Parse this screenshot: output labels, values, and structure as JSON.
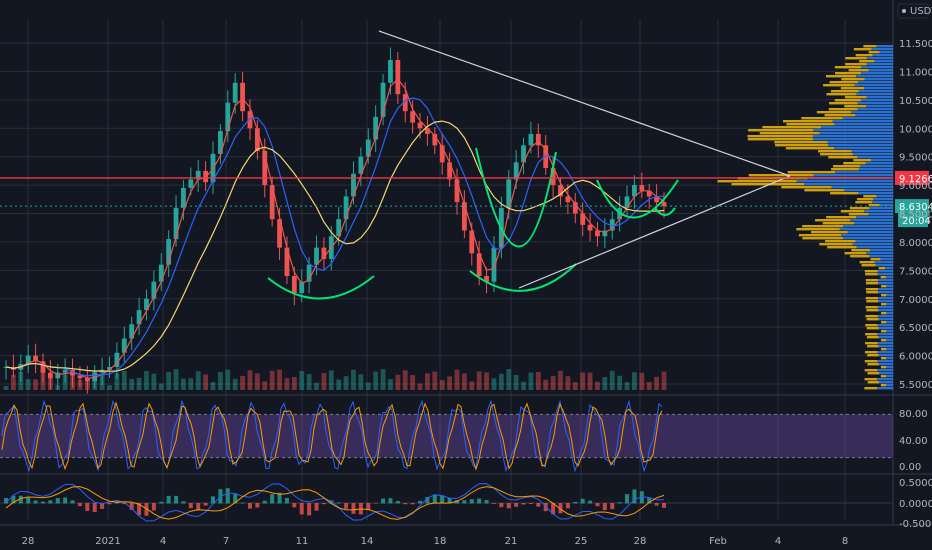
{
  "chart_data": {
    "type": "line",
    "currency_label": "USDT",
    "price_axis": {
      "ticks": [
        "11.5000",
        "11.0000",
        "10.5000",
        "10.0000",
        "9.5000",
        "9.0000",
        "8.5000",
        "8.0000",
        "7.5000",
        "7.0000",
        "6.5000",
        "6.0000",
        "5.5000"
      ],
      "ylim": [
        5.4,
        11.8
      ]
    },
    "time_axis": {
      "ticks": [
        "28",
        "2021",
        "4",
        "7",
        "11",
        "14",
        "18",
        "21",
        "25",
        "28",
        "Feb",
        "4",
        "8"
      ]
    },
    "price_series_close": [
      5.8,
      5.75,
      5.85,
      6.0,
      5.9,
      5.7,
      5.6,
      5.7,
      5.75,
      5.65,
      5.6,
      5.55,
      5.7,
      5.75,
      5.8,
      6.05,
      6.3,
      6.55,
      6.8,
      7.0,
      7.3,
      7.6,
      8.05,
      8.6,
      8.95,
      9.1,
      9.25,
      9.05,
      9.55,
      9.95,
      10.45,
      10.8,
      10.3,
      10.0,
      9.6,
      9.0,
      8.4,
      7.9,
      7.4,
      7.1,
      7.3,
      7.6,
      7.9,
      7.7,
      8.1,
      8.4,
      8.8,
      9.2,
      9.5,
      9.8,
      10.2,
      10.8,
      11.2,
      10.6,
      10.3,
      10.1,
      10.0,
      9.9,
      9.7,
      9.4,
      9.1,
      8.7,
      8.2,
      7.8,
      7.4,
      7.3,
      7.9,
      8.6,
      9.1,
      9.4,
      9.7,
      9.9,
      9.7,
      9.3,
      9.0,
      8.8,
      8.7,
      8.5,
      8.3,
      8.2,
      8.1,
      8.2,
      8.4,
      8.6,
      8.8,
      9.0,
      8.9,
      8.8,
      8.7,
      8.63
    ],
    "reference_lines": [
      {
        "label": "9.1266",
        "value": 9.1266,
        "color": "#f23645"
      },
      {
        "label": "8.6304",
        "value": 8.6304,
        "color": "#26a69a"
      }
    ],
    "countdown_label": "20:04",
    "stoch_axis": {
      "ticks": [
        "80.00",
        "40.00",
        "0.00"
      ],
      "ylim": [
        0,
        100
      ],
      "band": [
        20,
        80
      ]
    },
    "macd_axis": {
      "ticks": [
        "0.5000",
        "0.0000",
        "-0.5000"
      ],
      "ylim": [
        -0.8,
        0.8
      ]
    },
    "grid": true,
    "colors": {
      "background": "#131722",
      "candle_up": "#26a69a",
      "candle_down": "#ef5350",
      "ma_fast": "#ef5350",
      "ma_mid": "#2962ff",
      "ma_slow": "#f5d76e",
      "pattern": "#00e676",
      "trendline": "#d1d4dc",
      "volume_profile_up": "#2f80ed",
      "volume_profile_down": "#f0b90b",
      "stoch_k": "#2962ff",
      "stoch_d": "#ff9800",
      "stoch_band": "#7e57c2"
    }
  }
}
